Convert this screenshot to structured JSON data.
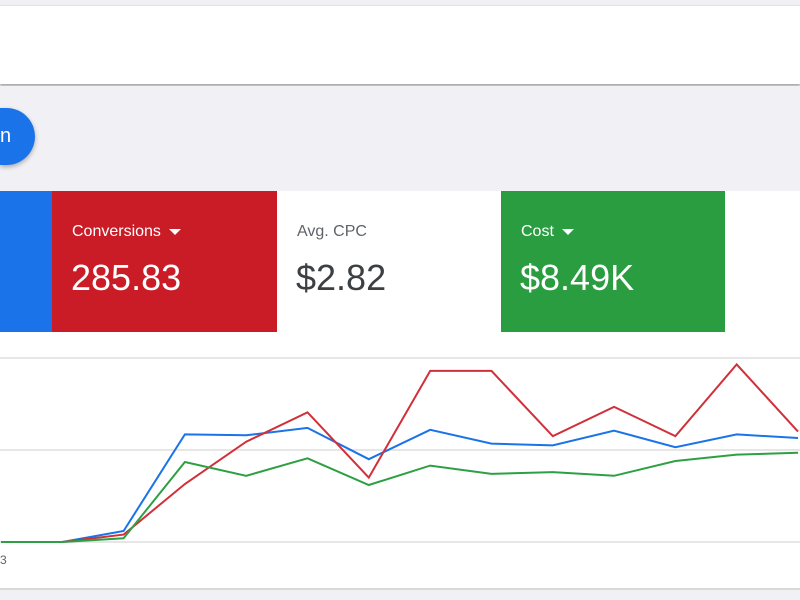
{
  "fab": {
    "label": "n"
  },
  "cards": [
    {
      "label": "",
      "value": "",
      "color": "#1a73e8"
    },
    {
      "label": "Conversions",
      "value": "285.83",
      "color": "#c91c27",
      "dropdown": true
    },
    {
      "label": "Avg. CPC",
      "value": "$2.82",
      "color": "#ffffff",
      "dropdown": false
    },
    {
      "label": "Cost",
      "value": "$8.49K",
      "color": "#2a9d41",
      "dropdown": true
    }
  ],
  "chart_data": {
    "type": "line",
    "x_tick_labels": [
      "3"
    ],
    "grid": true,
    "series": [
      {
        "color": "#1a73e8",
        "values": [
          0,
          0,
          0.12,
          1.17,
          1.16,
          1.24,
          0.9,
          1.22,
          1.07,
          1.05,
          1.21,
          1.03,
          1.17,
          1.13
        ]
      },
      {
        "color": "#d0303a",
        "values": [
          0,
          0,
          0.08,
          0.63,
          1.09,
          1.41,
          0.7,
          1.86,
          1.86,
          1.15,
          1.47,
          1.15,
          1.93,
          1.2
        ]
      },
      {
        "color": "#2ea043",
        "values": [
          0,
          0,
          0.04,
          0.87,
          0.72,
          0.91,
          0.62,
          0.83,
          0.74,
          0.76,
          0.72,
          0.88,
          0.95,
          0.97
        ]
      }
    ],
    "ylim": [
      0,
      2
    ]
  }
}
